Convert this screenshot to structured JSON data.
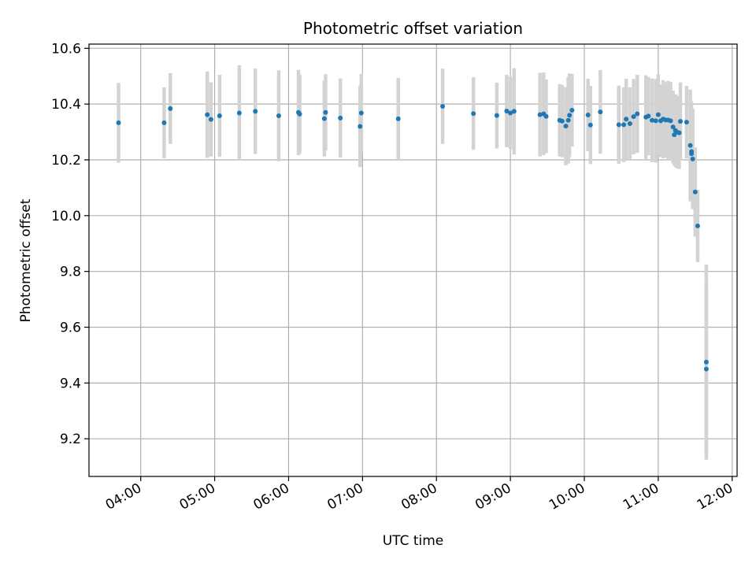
{
  "chart_data": {
    "type": "scatter",
    "title": "Photometric offset variation",
    "xlabel": "UTC time",
    "ylabel": "Photometric offset",
    "xlim": [
      "03:18",
      "12:04"
    ],
    "ylim": [
      9.065,
      10.615
    ],
    "xticks": [
      "04:00",
      "05:00",
      "06:00",
      "07:00",
      "08:00",
      "09:00",
      "10:00",
      "11:00",
      "12:00"
    ],
    "yticks": [
      9.2,
      9.4,
      9.6,
      9.8,
      10.0,
      10.2,
      10.4,
      10.6
    ],
    "ytick_labels": [
      "9.2",
      "9.4",
      "9.6",
      "9.8",
      "10.0",
      "10.2",
      "10.4",
      "10.6"
    ],
    "grid": true,
    "colors": {
      "marker": "#1f77b4",
      "errorbar": "#d3d3d3",
      "grid": "#b0b0b0"
    },
    "series": [
      {
        "x": [
          "03:42",
          "04:19",
          "04:24",
          "04:54",
          "04:57",
          "05:04",
          "05:20",
          "05:33",
          "05:52",
          "06:08",
          "06:09",
          "06:29",
          "06:30",
          "06:42",
          "06:58",
          "06:59",
          "07:29",
          "08:05",
          "08:30",
          "08:49",
          "08:57",
          "09:00",
          "09:03",
          "09:24",
          "09:27",
          "09:29",
          "09:40",
          "09:42",
          "09:45",
          "09:47",
          "09:48",
          "09:50",
          "10:03",
          "10:05",
          "10:13",
          "10:28",
          "10:32",
          "10:34",
          "10:37",
          "10:40",
          "10:43",
          "10:50",
          "10:52",
          "10:55",
          "10:58",
          "11:00",
          "11:02",
          "11:04",
          "11:06",
          "11:08",
          "11:10",
          "11:12",
          "11:13",
          "11:14",
          "11:15",
          "11:17",
          "11:18",
          "11:23",
          "11:26",
          "11:27",
          "11:27",
          "11:28",
          "11:30",
          "11:32",
          "11:39",
          "11:39"
        ],
        "y": [
          10.333,
          10.333,
          10.384,
          10.362,
          10.345,
          10.358,
          10.368,
          10.374,
          10.358,
          10.37,
          10.364,
          10.348,
          10.37,
          10.35,
          10.32,
          10.368,
          10.347,
          10.392,
          10.366,
          10.359,
          10.375,
          10.368,
          10.374,
          10.362,
          10.365,
          10.356,
          10.342,
          10.339,
          10.321,
          10.342,
          10.36,
          10.378,
          10.361,
          10.325,
          10.372,
          10.326,
          10.326,
          10.346,
          10.33,
          10.355,
          10.365,
          10.353,
          10.357,
          10.342,
          10.34,
          10.362,
          10.34,
          10.346,
          10.343,
          10.343,
          10.34,
          10.318,
          10.29,
          10.305,
          10.3,
          10.297,
          10.338,
          10.335,
          10.252,
          10.23,
          10.222,
          10.203,
          10.085,
          9.963,
          9.475,
          9.45
        ],
        "yerr": [
          0.143,
          0.127,
          0.127,
          0.155,
          0.133,
          0.147,
          0.171,
          0.153,
          0.163,
          0.153,
          0.142,
          0.136,
          0.137,
          0.142,
          0.146,
          0.14,
          0.147,
          0.135,
          0.13,
          0.118,
          0.13,
          0.13,
          0.155,
          0.15,
          0.148,
          0.132,
          0.13,
          0.13,
          0.14,
          0.155,
          0.15,
          0.13,
          0.13,
          0.14,
          0.15,
          0.14,
          0.134,
          0.145,
          0.13,
          0.135,
          0.14,
          0.15,
          0.14,
          0.15,
          0.15,
          0.145,
          0.13,
          0.14,
          0.135,
          0.14,
          0.14,
          0.13,
          0.11,
          0.13,
          0.13,
          0.13,
          0.14,
          0.13,
          0.2,
          0.18,
          0.15,
          0.18,
          0.16,
          0.13,
          0.35,
          0.3
        ]
      }
    ]
  }
}
